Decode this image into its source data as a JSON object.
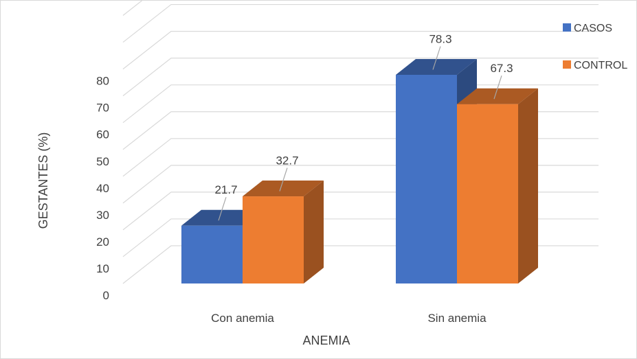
{
  "chart_data": {
    "type": "bar",
    "title": "",
    "xlabel": "ANEMIA",
    "ylabel": "GESTANTES (%)",
    "categories": [
      "Con anemia",
      "Sin anemia"
    ],
    "series": [
      {
        "name": "CASOS",
        "color": "#4472c4",
        "values": [
          21.7,
          78.3
        ],
        "labels": [
          "21.7",
          "78.3"
        ]
      },
      {
        "name": "CONTROL",
        "color": "#ed7d31",
        "values": [
          32.7,
          67.3
        ],
        "labels": [
          "32.7",
          "67.3"
        ]
      }
    ],
    "ylim": [
      0,
      80
    ],
    "yticks": [
      "0",
      "10",
      "20",
      "30",
      "40",
      "50",
      "60",
      "70",
      "80"
    ],
    "grid": true,
    "style": "3d-clustered-column",
    "legend": "top-right"
  }
}
